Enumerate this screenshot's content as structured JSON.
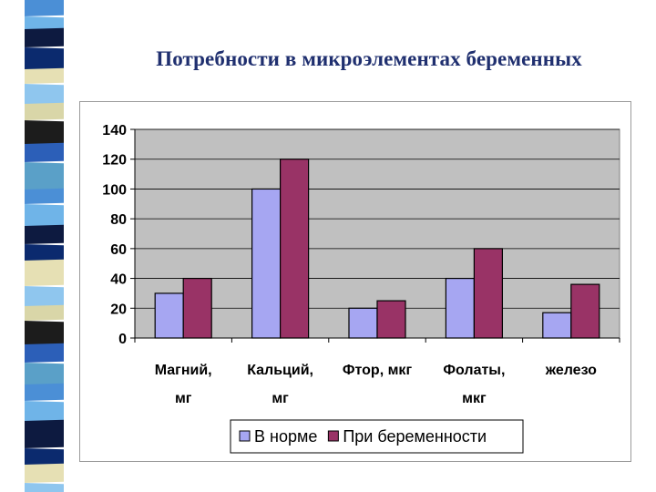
{
  "slide": {
    "title": "Потребности в микроэлементах беременных"
  },
  "colors": {
    "series_norm": "#a6a6f2",
    "series_pregnant": "#993366",
    "plot_bg": "#c0c0c0",
    "title": "#1f2f6f",
    "strip": [
      "#0b2a6e",
      "#4b8fd6",
      "#1c1c1c",
      "#e6e0b4",
      "#6fb4e8",
      "#2c5fb8",
      "#8fc6ee",
      "#0d1a40",
      "#5aa0c8",
      "#d9d6a8"
    ]
  },
  "chart_data": {
    "type": "bar",
    "categories": [
      [
        "Магний,",
        "мг"
      ],
      [
        "Кальций,",
        "мг"
      ],
      [
        "Фтор, мкг"
      ],
      [
        "Фолаты,",
        "мкг"
      ],
      [
        "железо"
      ]
    ],
    "series": [
      {
        "name": "В норме",
        "values": [
          30,
          100,
          20,
          40,
          17
        ]
      },
      {
        "name": "При беременности",
        "values": [
          40,
          120,
          25,
          60,
          36
        ]
      }
    ],
    "ylim": [
      0,
      140
    ],
    "yticks": [
      0,
      20,
      40,
      60,
      80,
      100,
      120,
      140
    ],
    "grid": true,
    "legend_position": "bottom"
  }
}
